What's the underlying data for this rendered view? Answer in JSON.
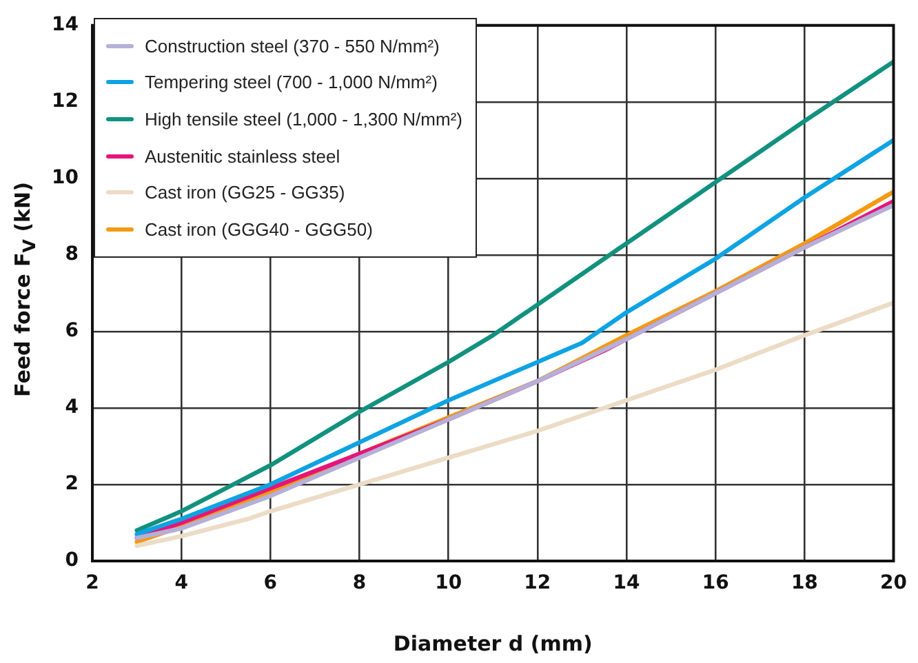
{
  "chart_data": {
    "type": "line",
    "xlabel": "Diameter d (mm)",
    "ylabel": "Feed force F$_{V}$ (kN)",
    "xlim": [
      2,
      20
    ],
    "xticks": [
      2,
      4,
      6,
      8,
      10,
      12,
      14,
      16,
      18,
      20
    ],
    "ylim": [
      0,
      14
    ],
    "yticks": [
      0,
      2,
      4,
      6,
      8,
      10,
      12,
      14
    ],
    "grid": true,
    "legend": "top left",
    "marker": "none",
    "line_style": "solid",
    "series": [
      {
        "name": "Construction steel (370 - 550 N/mm²)",
        "color": "#b4b0d8",
        "x": [
          3,
          4,
          6,
          8,
          10,
          12,
          14,
          16,
          18,
          20
        ],
        "values": [
          0.6,
          0.85,
          1.7,
          2.7,
          3.7,
          4.7,
          5.8,
          7.0,
          8.2,
          9.3
        ]
      },
      {
        "name": "Tempering steel (700 - 1,000 N/mm²)",
        "color": "#0ea3e2",
        "x": [
          3,
          4,
          6,
          8,
          10,
          12,
          13,
          14,
          16,
          18,
          20
        ],
        "values": [
          0.7,
          1.1,
          2.0,
          3.1,
          4.2,
          5.2,
          5.7,
          6.5,
          7.9,
          9.5,
          11.0
        ]
      },
      {
        "name": "High tensile steel (1,000 - 1,300 N/mm²)",
        "color": "#11917e",
        "x": [
          3,
          4,
          5,
          6,
          8,
          10,
          11,
          12,
          14,
          16,
          18,
          20
        ],
        "values": [
          0.8,
          1.3,
          1.9,
          2.5,
          3.9,
          5.2,
          5.9,
          6.7,
          8.3,
          9.9,
          11.5,
          13.05
        ]
      },
      {
        "name": "Austenitic stainless steel",
        "color": "#e5157a",
        "x": [
          3,
          4,
          6,
          8,
          10,
          12,
          13.5,
          14,
          16,
          18,
          20
        ],
        "values": [
          0.6,
          1.0,
          1.9,
          2.8,
          3.7,
          4.7,
          5.5,
          5.8,
          7.0,
          8.2,
          9.4
        ]
      },
      {
        "name": "Cast iron (GG25 - GG35)",
        "color": "#ecdcc6",
        "x": [
          3,
          4,
          5.5,
          6,
          8,
          10,
          12,
          13,
          14,
          16,
          18,
          20
        ],
        "values": [
          0.4,
          0.65,
          1.1,
          1.3,
          2.0,
          2.7,
          3.4,
          3.8,
          4.2,
          5.0,
          5.9,
          6.75
        ]
      },
      {
        "name": "Cast iron (GGG40 - GGG50)",
        "color": "#f39a12",
        "x": [
          3,
          4,
          6,
          8,
          10,
          12,
          14,
          16,
          18,
          20
        ],
        "values": [
          0.5,
          0.9,
          1.8,
          2.8,
          3.75,
          4.7,
          5.9,
          7.05,
          8.3,
          9.65
        ]
      }
    ]
  }
}
